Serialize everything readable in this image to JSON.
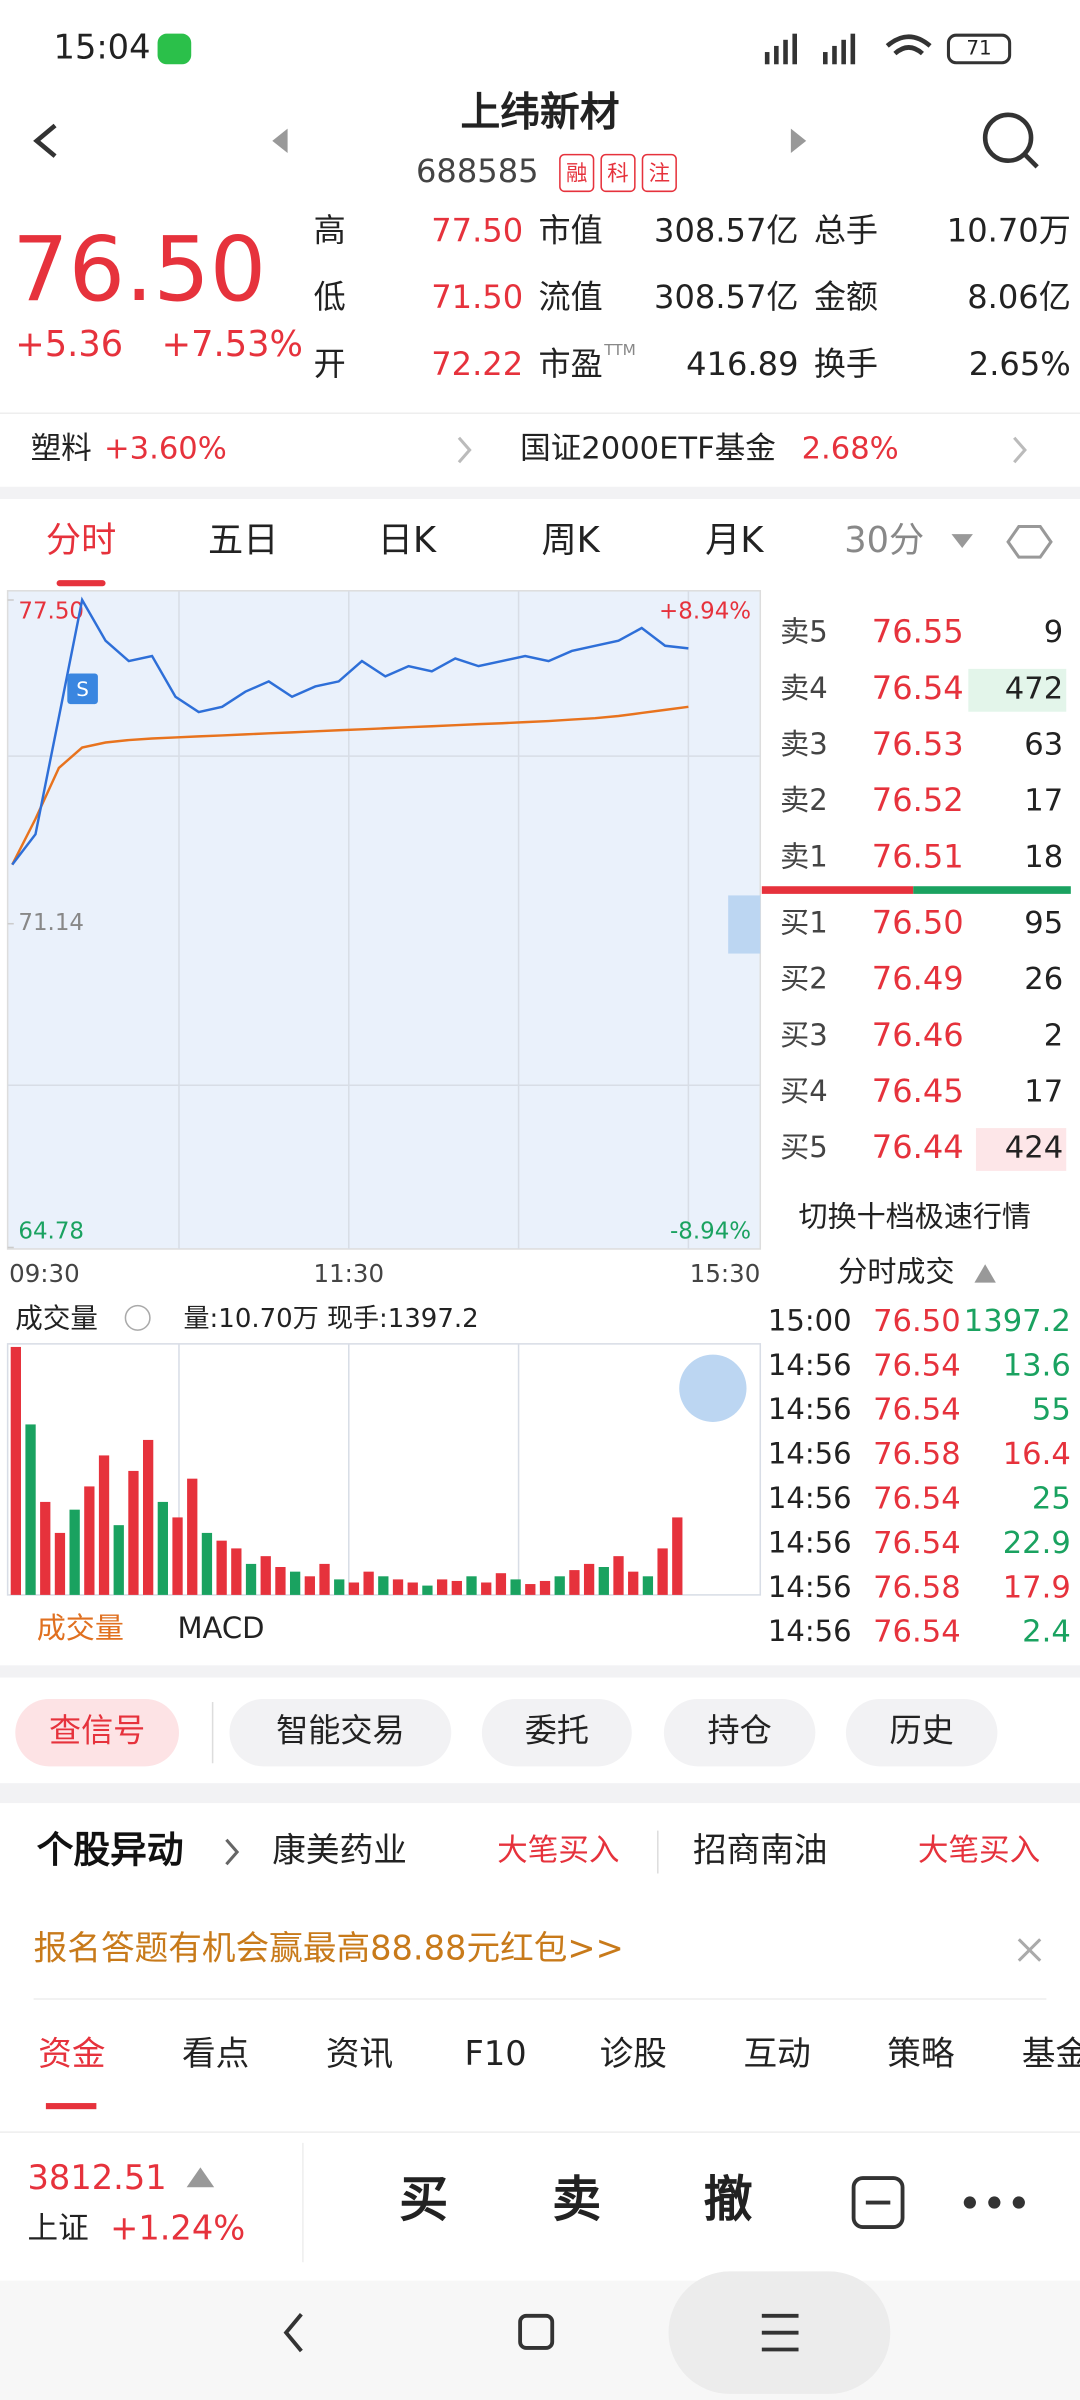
{
  "status": {
    "time": "15:04",
    "battery": "71"
  },
  "header": {
    "title": "上纬新材",
    "code": "688585",
    "tags": [
      "融",
      "科",
      "注"
    ]
  },
  "quote": {
    "price": "76.50",
    "change": "+5.36",
    "pct": "+7.53%",
    "ttm": "TTM",
    "stats": [
      [
        "高",
        "77.50",
        "市值",
        "308.57亿",
        "总手",
        "10.70万"
      ],
      [
        "低",
        "71.50",
        "流值",
        "308.57亿",
        "金额",
        "8.06亿"
      ],
      [
        "开",
        "72.22",
        "市盈",
        "416.89",
        "换手",
        "2.65%"
      ]
    ]
  },
  "sectors": [
    {
      "name": "塑料",
      "value": "+3.60%"
    },
    {
      "name": "国证2000ETF基金",
      "value": "2.68%"
    }
  ],
  "tabs": [
    "分时",
    "五日",
    "日K",
    "周K",
    "月K",
    "30分"
  ],
  "chart": {
    "ylim": [
      64.78,
      77.5
    ],
    "yticks": [
      {
        "value": 77.5,
        "label": "77.50"
      },
      71.14,
      64.78
    ],
    "pct_top": "+8.94%",
    "pct_bottom": "-8.94%",
    "times": [
      "09:30",
      "11:30",
      "15:30"
    ],
    "marker": "S",
    "price": [
      72.3,
      72.9,
      75.2,
      77.5,
      76.7,
      76.3,
      76.4,
      75.6,
      75.3,
      75.4,
      75.7,
      75.9,
      75.6,
      75.8,
      75.9,
      76.3,
      76.0,
      76.2,
      76.1,
      76.35,
      76.2,
      76.3,
      76.4,
      76.3,
      76.5,
      76.6,
      76.7,
      76.95,
      76.6,
      76.55
    ],
    "avg": [
      72.3,
      73.2,
      74.2,
      74.6,
      74.7,
      74.75,
      74.78,
      74.8,
      74.82,
      74.84,
      74.86,
      74.88,
      74.9,
      74.92,
      74.94,
      74.96,
      74.98,
      75.0,
      75.02,
      75.04,
      75.06,
      75.08,
      75.1,
      75.12,
      75.15,
      75.18,
      75.22,
      75.28,
      75.34,
      75.4
    ],
    "volume_label": "成交量",
    "volume_info": "量:10.70万 现手:1397.2",
    "volume_ylim": [
      0,
      160
    ],
    "volume": [
      160,
      110,
      60,
      40,
      55,
      70,
      90,
      45,
      80,
      100,
      60,
      50,
      75,
      40,
      35,
      30,
      20,
      25,
      18,
      15,
      12,
      20,
      10,
      8,
      15,
      12,
      10,
      8,
      6,
      10,
      9,
      12,
      8,
      14,
      10,
      7,
      9,
      12,
      16,
      20,
      18,
      25,
      15,
      12,
      30,
      50
    ],
    "sub_tabs": [
      "成交量",
      "MACD"
    ]
  },
  "orderbook": {
    "sell": [
      [
        "卖5",
        "76.55",
        "9"
      ],
      [
        "卖4",
        "76.54",
        "472"
      ],
      [
        "卖3",
        "76.53",
        "63"
      ],
      [
        "卖2",
        "76.52",
        "17"
      ],
      [
        "卖1",
        "76.51",
        "18"
      ]
    ],
    "buy": [
      [
        "买1",
        "76.50",
        "95"
      ],
      [
        "买2",
        "76.49",
        "26"
      ],
      [
        "买3",
        "76.46",
        "2"
      ],
      [
        "买4",
        "76.45",
        "17"
      ],
      [
        "买5",
        "76.44",
        "424"
      ]
    ],
    "switch": "切换十档极速行情",
    "trades_title": "分时成交",
    "trades": [
      [
        "15:00",
        "76.50",
        "1397.2"
      ],
      [
        "14:56",
        "76.54",
        "13.6"
      ],
      [
        "14:56",
        "76.54",
        "55"
      ],
      [
        "14:56",
        "76.58",
        "16.4"
      ],
      [
        "14:56",
        "76.54",
        "25"
      ],
      [
        "14:56",
        "76.54",
        "22.9"
      ],
      [
        "14:56",
        "76.58",
        "17.9"
      ],
      [
        "14:56",
        "76.54",
        "2.4"
      ]
    ]
  },
  "actions": [
    "查信号",
    "智能交易",
    "委托",
    "持仓",
    "历史"
  ],
  "movers": {
    "title": "个股异动",
    "items": [
      [
        "康美药业",
        "大笔买入"
      ],
      [
        "招商南油",
        "大笔买入"
      ]
    ]
  },
  "banner": "报名答题有机会赢最高88.88元红包>>",
  "info_tabs": [
    "资金",
    "看点",
    "资讯",
    "F10",
    "诊股",
    "互动",
    "策略",
    "基金"
  ],
  "index": {
    "value": "3812.51",
    "name": "上证",
    "pct": "+1.24%"
  },
  "trade_buttons": [
    "买",
    "卖",
    "撤"
  ]
}
